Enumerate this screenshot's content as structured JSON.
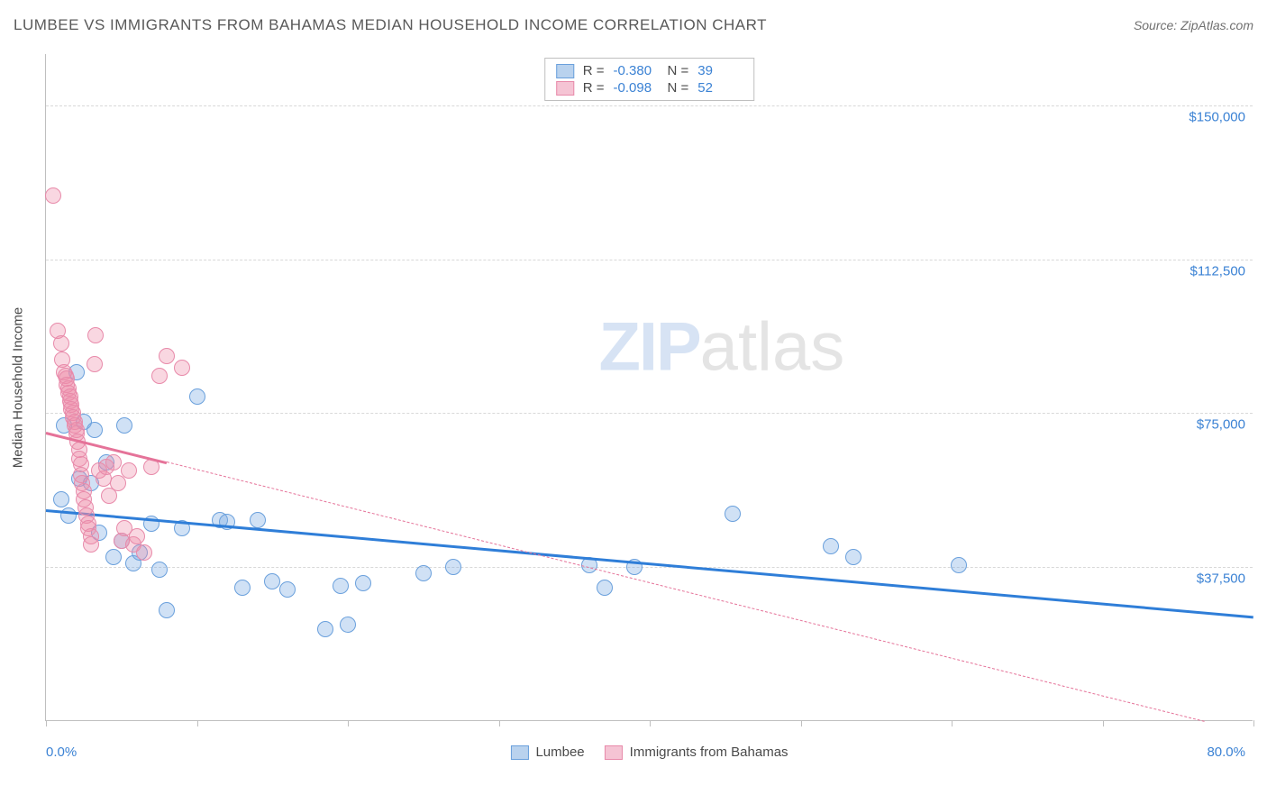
{
  "header": {
    "title": "LUMBEE VS IMMIGRANTS FROM BAHAMAS MEDIAN HOUSEHOLD INCOME CORRELATION CHART",
    "source_prefix": "Source: ",
    "source_name": "ZipAtlas.com"
  },
  "watermark": {
    "part1": "ZIP",
    "part2": "atlas"
  },
  "chart": {
    "type": "scatter",
    "y_axis_label": "Median Household Income",
    "xlim": [
      0,
      80
    ],
    "ylim": [
      0,
      162500
    ],
    "x_min_label": "0.0%",
    "x_max_label": "80.0%",
    "x_ticks": [
      0,
      10,
      20,
      30,
      40,
      50,
      60,
      70,
      80
    ],
    "y_gridlines": [
      {
        "value": 37500,
        "label": "$37,500"
      },
      {
        "value": 75000,
        "label": "$75,000"
      },
      {
        "value": 112500,
        "label": "$112,500"
      },
      {
        "value": 150000,
        "label": "$150,000"
      }
    ],
    "background_color": "#ffffff",
    "grid_color": "#d8d8d8",
    "axis_color": "#bfbfbf",
    "tick_label_color": "#3b82d4",
    "marker_radius": 9,
    "marker_stroke_width": 1.2,
    "marker_fill_opacity": 0.32
  },
  "series": [
    {
      "name": "Lumbee",
      "color_fill": "rgba(120,170,226,0.35)",
      "color_stroke": "#6aa0dc",
      "swatch_fill": "#b9d2ee",
      "swatch_stroke": "#6aa0dc",
      "trend_color": "#2f7ed8",
      "trend_solid": true,
      "R": "-0.380",
      "N": "39",
      "trend": {
        "x1": 0,
        "y1": 51500,
        "x2": 80,
        "y2": 25500
      },
      "points": [
        [
          1.0,
          54000
        ],
        [
          1.2,
          72000
        ],
        [
          1.5,
          50000
        ],
        [
          2.0,
          85000
        ],
        [
          2.2,
          59000
        ],
        [
          2.5,
          73000
        ],
        [
          3.0,
          58000
        ],
        [
          3.2,
          71000
        ],
        [
          3.5,
          46000
        ],
        [
          4.0,
          63000
        ],
        [
          4.5,
          40000
        ],
        [
          5.0,
          44000
        ],
        [
          5.2,
          72000
        ],
        [
          5.8,
          38500
        ],
        [
          6.2,
          41000
        ],
        [
          7.0,
          48000
        ],
        [
          7.5,
          37000
        ],
        [
          8.0,
          27000
        ],
        [
          9.0,
          47000
        ],
        [
          10.0,
          79000
        ],
        [
          11.5,
          49000
        ],
        [
          12.0,
          48500
        ],
        [
          13.0,
          32500
        ],
        [
          14.0,
          49000
        ],
        [
          15.0,
          34000
        ],
        [
          16.0,
          32000
        ],
        [
          18.5,
          22500
        ],
        [
          19.5,
          33000
        ],
        [
          20.0,
          23500
        ],
        [
          21.0,
          33500
        ],
        [
          25.0,
          36000
        ],
        [
          27.0,
          37500
        ],
        [
          36.0,
          38000
        ],
        [
          37.0,
          32500
        ],
        [
          39.0,
          37500
        ],
        [
          45.5,
          50500
        ],
        [
          52.0,
          42500
        ],
        [
          53.5,
          40000
        ],
        [
          60.5,
          38000
        ]
      ]
    },
    {
      "name": "Immigrants from Bahamas",
      "color_fill": "rgba(238,140,170,0.35)",
      "color_stroke": "#e88aaa",
      "swatch_fill": "#f5c4d4",
      "swatch_stroke": "#e88aaa",
      "trend_color": "#e57399",
      "trend_solid": false,
      "R": "-0.098",
      "N": "52",
      "trend": {
        "x1": 0,
        "y1": 70500,
        "x2": 80,
        "y2": -3000
      },
      "trend_solid_segment": {
        "x1": 0,
        "y1": 70500,
        "x2": 8,
        "y2": 63200
      },
      "points": [
        [
          0.5,
          128000
        ],
        [
          0.8,
          95000
        ],
        [
          1.0,
          92000
        ],
        [
          1.1,
          88000
        ],
        [
          1.2,
          85000
        ],
        [
          1.3,
          84000
        ],
        [
          1.4,
          83500
        ],
        [
          1.4,
          82000
        ],
        [
          1.5,
          81000
        ],
        [
          1.5,
          80000
        ],
        [
          1.6,
          79000
        ],
        [
          1.6,
          78000
        ],
        [
          1.7,
          77000
        ],
        [
          1.7,
          76000
        ],
        [
          1.8,
          75000
        ],
        [
          1.8,
          74000
        ],
        [
          1.9,
          73000
        ],
        [
          1.9,
          72000
        ],
        [
          2.0,
          71000
        ],
        [
          2.0,
          70000
        ],
        [
          2.1,
          68000
        ],
        [
          2.2,
          66000
        ],
        [
          2.2,
          64000
        ],
        [
          2.3,
          62500
        ],
        [
          2.3,
          60000
        ],
        [
          2.4,
          58000
        ],
        [
          2.5,
          56000
        ],
        [
          2.5,
          54000
        ],
        [
          2.6,
          52000
        ],
        [
          2.7,
          50000
        ],
        [
          2.8,
          48000
        ],
        [
          2.8,
          47000
        ],
        [
          3.0,
          45000
        ],
        [
          3.0,
          43000
        ],
        [
          3.2,
          87000
        ],
        [
          3.3,
          94000
        ],
        [
          3.5,
          61000
        ],
        [
          3.8,
          59000
        ],
        [
          4.0,
          62000
        ],
        [
          4.2,
          55000
        ],
        [
          4.5,
          63000
        ],
        [
          4.8,
          58000
        ],
        [
          5.0,
          44000
        ],
        [
          5.2,
          47000
        ],
        [
          5.5,
          61000
        ],
        [
          5.8,
          43000
        ],
        [
          6.0,
          45000
        ],
        [
          6.5,
          41000
        ],
        [
          7.0,
          62000
        ],
        [
          7.5,
          84000
        ],
        [
          8.0,
          89000
        ],
        [
          9.0,
          86000
        ]
      ]
    }
  ],
  "stats_legend": {
    "r_label": "R =",
    "n_label": "N ="
  },
  "bottom_legend": {
    "items": [
      {
        "label": "Lumbee",
        "series_idx": 0
      },
      {
        "label": "Immigrants from Bahamas",
        "series_idx": 1
      }
    ]
  }
}
